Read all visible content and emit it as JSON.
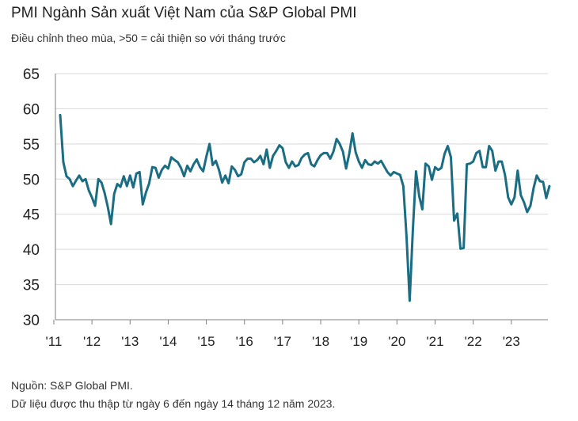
{
  "title": "PMI Ngành Sản xuất Việt Nam của S&P Global PMI",
  "subtitle": "Điều chỉnh theo mùa, >50 = cải thiện so với tháng trước",
  "footer": {
    "source": "Nguồn: S&P Global PMI.",
    "note": "Dữ liệu được thu thập từ ngày 6 đến ngày 14 tháng 12 năm 2023."
  },
  "colors": {
    "line": "#1a6d82",
    "grid": "#d9d9d9",
    "axis": "#7f7f7f"
  },
  "chart_data": {
    "type": "line",
    "title": "PMI Ngành Sản xuất Việt Nam của S&P Global PMI",
    "xlabel": "",
    "ylabel": "",
    "ylim": [
      30,
      65
    ],
    "yticks": [
      "30",
      "35",
      "40",
      "45",
      "50",
      "55",
      "60",
      "65"
    ],
    "xticks": [
      "'11",
      "'12",
      "'13",
      "'14",
      "'15",
      "'16",
      "'17",
      "'18",
      "'19",
      "'20",
      "'21",
      "'22",
      "'23"
    ],
    "grid": "horizontal",
    "x_start": "2011-03",
    "x_end": "2023-11",
    "series": [
      {
        "name": "",
        "values": [
          59.1,
          52.4,
          50.4,
          50.0,
          49.0,
          49.8,
          50.5,
          49.7,
          50.0,
          48.4,
          47.4,
          46.2,
          50.0,
          49.5,
          48.0,
          46.0,
          43.6,
          47.9,
          49.3,
          48.9,
          50.4,
          49.0,
          50.5,
          48.8,
          50.8,
          51.0,
          46.4,
          48.1,
          49.4,
          51.7,
          51.6,
          50.2,
          51.3,
          51.9,
          51.5,
          53.1,
          52.7,
          52.4,
          51.6,
          50.4,
          51.9,
          51.1,
          52.1,
          52.8,
          51.7,
          51.1,
          53.2,
          55.0,
          52.0,
          52.6,
          51.3,
          49.5,
          50.5,
          49.4,
          51.8,
          51.3,
          50.4,
          50.7,
          52.4,
          52.9,
          52.9,
          52.4,
          52.7,
          53.3,
          52.1,
          54.2,
          51.6,
          53.3,
          54.0,
          54.8,
          54.4,
          52.4,
          51.6,
          52.5,
          51.8,
          52.0,
          53.0,
          53.5,
          53.7,
          52.1,
          51.8,
          52.7,
          53.4,
          53.7,
          53.7,
          52.9,
          53.9,
          55.7,
          55.0,
          53.9,
          51.5,
          53.6,
          56.5,
          53.8,
          52.5,
          51.6,
          52.7,
          52.1,
          52.0,
          52.5,
          52.2,
          52.6,
          51.8,
          51.0,
          50.5,
          51.0,
          50.8,
          50.6,
          49.0,
          41.9,
          32.7,
          42.7,
          51.1,
          47.6,
          45.7,
          52.2,
          51.8,
          49.9,
          51.7,
          51.3,
          51.6,
          53.6,
          54.7,
          53.1,
          44.1,
          45.1,
          40.1,
          40.2,
          52.1,
          52.2,
          52.5,
          53.7,
          54.0,
          51.7,
          51.7,
          54.7,
          54.0,
          51.2,
          52.5,
          52.5,
          50.6,
          47.4,
          46.4,
          47.4,
          51.2,
          47.7,
          46.7,
          45.3,
          46.2,
          48.7,
          50.5,
          49.7,
          49.6,
          47.3,
          49.0
        ]
      }
    ]
  }
}
